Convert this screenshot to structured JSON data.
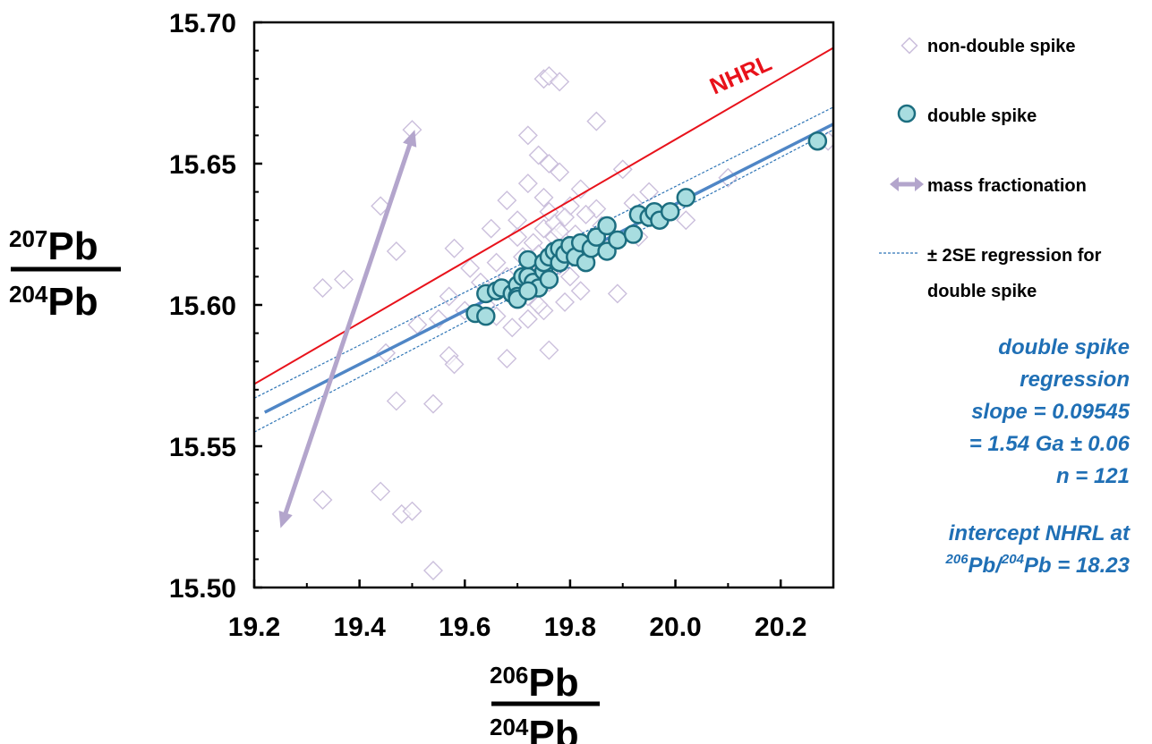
{
  "chart_data": {
    "type": "scatter",
    "xlim": [
      19.2,
      20.3
    ],
    "ylim": [
      15.5,
      15.7
    ],
    "x_ticks": [
      "19.2",
      "19.4",
      "19.6",
      "19.8",
      "20.0",
      "20.2"
    ],
    "x_tick_values": [
      19.2,
      19.4,
      19.6,
      19.8,
      20.0,
      20.2
    ],
    "y_ticks": [
      "15.50",
      "15.55",
      "15.60",
      "15.65",
      "15.70"
    ],
    "y_tick_values": [
      15.5,
      15.55,
      15.6,
      15.65,
      15.7
    ],
    "xlabel": {
      "num_sup": "206",
      "num_el": "Pb",
      "den_sup": "204",
      "den_el": "Pb"
    },
    "ylabel": {
      "num_sup": "207",
      "num_el": "Pb",
      "den_sup": "204",
      "den_el": "Pb"
    },
    "grid": false,
    "legend_position": "right",
    "legend": [
      {
        "name": "non-double spike",
        "marker": "diamond"
      },
      {
        "name": "double spike",
        "marker": "circle"
      },
      {
        "name": "mass fractionation",
        "marker": "double-arrow"
      },
      {
        "name": "± 2SE regression for",
        "name_line2": "double spike",
        "marker": "dashed-line"
      }
    ],
    "series": [
      {
        "name": "non-double spike",
        "kind": "diamond",
        "color": "#cbbfdc",
        "points": [
          [
            19.5,
            15.662
          ],
          [
            19.75,
            15.68
          ],
          [
            19.76,
            15.681
          ],
          [
            19.78,
            15.679
          ],
          [
            19.85,
            15.665
          ],
          [
            19.72,
            15.66
          ],
          [
            19.74,
            15.653
          ],
          [
            19.76,
            15.65
          ],
          [
            19.72,
            15.643
          ],
          [
            19.78,
            15.647
          ],
          [
            19.82,
            15.641
          ],
          [
            19.9,
            15.648
          ],
          [
            19.68,
            15.637
          ],
          [
            19.7,
            15.63
          ],
          [
            19.75,
            15.638
          ],
          [
            19.8,
            15.635
          ],
          [
            19.85,
            15.634
          ],
          [
            19.92,
            15.636
          ],
          [
            19.95,
            15.64
          ],
          [
            20.1,
            15.645
          ],
          [
            20.02,
            15.63
          ],
          [
            19.44,
            15.635
          ],
          [
            19.47,
            15.619
          ],
          [
            19.58,
            15.62
          ],
          [
            19.65,
            15.627
          ],
          [
            19.7,
            15.624
          ],
          [
            19.73,
            15.622
          ],
          [
            19.75,
            15.627
          ],
          [
            19.77,
            15.629
          ],
          [
            19.79,
            15.631
          ],
          [
            19.74,
            15.618
          ],
          [
            19.77,
            15.624
          ],
          [
            19.81,
            15.625
          ],
          [
            19.83,
            15.632
          ],
          [
            19.86,
            15.628
          ],
          [
            19.88,
            15.622
          ],
          [
            19.93,
            15.624
          ],
          [
            19.61,
            15.613
          ],
          [
            19.63,
            15.608
          ],
          [
            19.66,
            15.615
          ],
          [
            19.68,
            15.61
          ],
          [
            19.7,
            15.606
          ],
          [
            19.72,
            15.603
          ],
          [
            19.74,
            15.612
          ],
          [
            19.76,
            15.608
          ],
          [
            19.78,
            15.614
          ],
          [
            19.8,
            15.61
          ],
          [
            19.82,
            15.605
          ],
          [
            19.57,
            15.603
          ],
          [
            19.6,
            15.598
          ],
          [
            19.64,
            15.6
          ],
          [
            19.66,
            15.596
          ],
          [
            19.69,
            15.592
          ],
          [
            19.72,
            15.595
          ],
          [
            19.75,
            15.598
          ],
          [
            19.79,
            15.601
          ],
          [
            19.33,
            15.606
          ],
          [
            19.37,
            15.609
          ],
          [
            19.51,
            15.593
          ],
          [
            19.55,
            15.595
          ],
          [
            19.57,
            15.582
          ],
          [
            19.58,
            15.579
          ],
          [
            19.68,
            15.581
          ],
          [
            19.76,
            15.584
          ],
          [
            19.89,
            15.604
          ],
          [
            19.45,
            15.583
          ],
          [
            19.47,
            15.566
          ],
          [
            19.54,
            15.565
          ],
          [
            19.44,
            15.534
          ],
          [
            19.48,
            15.526
          ],
          [
            19.5,
            15.527
          ],
          [
            19.33,
            15.531
          ],
          [
            19.54,
            15.506
          ],
          [
            20.29,
            15.658
          ],
          [
            19.76,
            15.633
          ],
          [
            19.78,
            15.626
          ],
          [
            19.8,
            15.62
          ],
          [
            19.71,
            15.617
          ],
          [
            19.74,
            15.6
          ]
        ]
      },
      {
        "name": "double spike",
        "kind": "circle",
        "color": "#a8dde0",
        "stroke": "#1c6e80",
        "points": [
          [
            19.62,
            15.597
          ],
          [
            19.64,
            15.596
          ],
          [
            19.64,
            15.604
          ],
          [
            19.66,
            15.605
          ],
          [
            19.67,
            15.606
          ],
          [
            19.69,
            15.604
          ],
          [
            19.7,
            15.607
          ],
          [
            19.7,
            15.603
          ],
          [
            19.71,
            15.61
          ],
          [
            19.72,
            15.61
          ],
          [
            19.72,
            15.616
          ],
          [
            19.73,
            15.608
          ],
          [
            19.74,
            15.606
          ],
          [
            19.75,
            15.612
          ],
          [
            19.75,
            15.615
          ],
          [
            19.76,
            15.609
          ],
          [
            19.76,
            15.617
          ],
          [
            19.77,
            15.619
          ],
          [
            19.78,
            15.615
          ],
          [
            19.78,
            15.62
          ],
          [
            19.79,
            15.618
          ],
          [
            19.8,
            15.621
          ],
          [
            19.81,
            15.617
          ],
          [
            19.82,
            15.622
          ],
          [
            19.83,
            15.615
          ],
          [
            19.84,
            15.62
          ],
          [
            19.85,
            15.624
          ],
          [
            19.87,
            15.628
          ],
          [
            19.87,
            15.619
          ],
          [
            19.89,
            15.623
          ],
          [
            19.92,
            15.625
          ],
          [
            19.93,
            15.632
          ],
          [
            19.95,
            15.631
          ],
          [
            19.96,
            15.633
          ],
          [
            19.97,
            15.63
          ],
          [
            19.99,
            15.633
          ],
          [
            20.02,
            15.638
          ],
          [
            20.27,
            15.658
          ],
          [
            19.7,
            15.602
          ],
          [
            19.72,
            15.605
          ]
        ]
      }
    ],
    "lines": [
      {
        "name": "NHRL",
        "color": "#e8121b",
        "x": [
          19.2,
          20.3
        ],
        "y": [
          15.572,
          15.691
        ]
      },
      {
        "name": "double spike regression",
        "color": "#4f86c6",
        "x": [
          19.22,
          20.3
        ],
        "y": [
          15.562,
          15.664
        ]
      },
      {
        "name": "+2SE",
        "color": "#2e75b6",
        "dashed": true,
        "x": [
          19.2,
          20.3
        ],
        "y": [
          15.567,
          15.67
        ]
      },
      {
        "name": "-2SE",
        "color": "#2e75b6",
        "dashed": true,
        "x": [
          19.2,
          20.3
        ],
        "y": [
          15.555,
          15.662
        ]
      }
    ],
    "mass_fractionation_arrow": {
      "color": "#b3a5cc",
      "x": [
        19.25,
        19.505
      ],
      "y": [
        15.521,
        15.662
      ]
    },
    "annotations": {
      "nhrl_label": "NHRL",
      "regression_lines": [
        "double spike",
        "regression",
        "slope = 0.09545",
        "= 1.54 Ga ± 0.06",
        "n = 121"
      ],
      "intercept_line1": "intercept NHRL at",
      "intercept_sup1": "206",
      "intercept_mid": "Pb/",
      "intercept_sup2": "204",
      "intercept_end": "Pb = 18.23"
    }
  }
}
